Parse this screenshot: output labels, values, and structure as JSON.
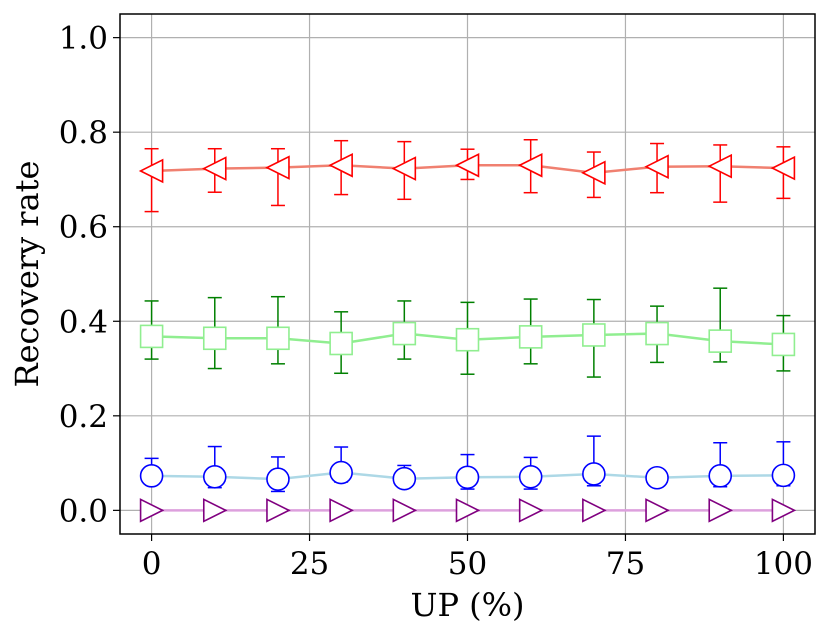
{
  "chart_data": {
    "type": "line",
    "xlabel": "UP (%)",
    "ylabel": "Recovery rate",
    "xlim": [
      -5,
      105
    ],
    "ylim": [
      -0.05,
      1.05
    ],
    "xticks": [
      0,
      25,
      50,
      75,
      100
    ],
    "xtick_labels": [
      "0",
      "25",
      "50",
      "75",
      "100"
    ],
    "yticks": [
      0.0,
      0.2,
      0.4,
      0.6,
      0.8,
      1.0
    ],
    "ytick_labels": [
      "0.0",
      "0.2",
      "0.4",
      "0.6",
      "0.8",
      "1.0"
    ],
    "grid": true,
    "x": [
      0,
      10,
      20,
      30,
      40,
      50,
      60,
      70,
      80,
      90,
      100
    ],
    "series": [
      {
        "marker": "triangle-left",
        "line_color": "#f08070",
        "marker_color": "#ff0000",
        "values": [
          0.718,
          0.723,
          0.725,
          0.73,
          0.723,
          0.73,
          0.73,
          0.714,
          0.727,
          0.728,
          0.724
        ],
        "err_low": [
          0.632,
          0.673,
          0.645,
          0.668,
          0.658,
          0.7,
          0.672,
          0.662,
          0.672,
          0.652,
          0.66
        ],
        "err_high": [
          0.765,
          0.765,
          0.765,
          0.782,
          0.78,
          0.764,
          0.784,
          0.758,
          0.776,
          0.773,
          0.769
        ]
      },
      {
        "marker": "square",
        "line_color": "#90ee90",
        "marker_color": "#90ee90",
        "err_color": "#008000",
        "values": [
          0.368,
          0.364,
          0.364,
          0.353,
          0.374,
          0.361,
          0.367,
          0.371,
          0.374,
          0.358,
          0.351
        ],
        "err_low": [
          0.32,
          0.3,
          0.31,
          0.29,
          0.32,
          0.288,
          0.31,
          0.282,
          0.313,
          0.314,
          0.295
        ],
        "err_high": [
          0.443,
          0.45,
          0.452,
          0.42,
          0.443,
          0.44,
          0.447,
          0.446,
          0.432,
          0.47,
          0.412
        ]
      },
      {
        "marker": "circle",
        "line_color": "#add8e6",
        "marker_color": "#0000ff",
        "values": [
          0.073,
          0.071,
          0.066,
          0.08,
          0.067,
          0.07,
          0.071,
          0.077,
          0.069,
          0.073,
          0.074
        ],
        "err_low": [
          0.058,
          0.048,
          0.04,
          0.06,
          0.055,
          0.045,
          0.045,
          0.052,
          0.055,
          0.05,
          0.052
        ],
        "err_high": [
          0.11,
          0.135,
          0.113,
          0.134,
          0.095,
          0.118,
          0.112,
          0.157,
          0.087,
          0.143,
          0.145
        ]
      },
      {
        "marker": "triangle-right",
        "line_color": "#dda0dd",
        "marker_color": "#800080",
        "values": [
          0.0,
          0.0,
          0.0,
          0.0,
          0.0,
          0.0,
          0.0,
          0.0,
          0.0,
          0.0,
          0.0
        ],
        "err_low": [
          0.0,
          0.0,
          0.0,
          0.0,
          0.0,
          0.0,
          0.0,
          0.0,
          0.0,
          0.0,
          0.0
        ],
        "err_high": [
          0.0,
          0.0,
          0.0,
          0.0,
          0.0,
          0.0,
          0.0,
          0.0,
          0.0,
          0.0,
          0.0
        ]
      }
    ]
  }
}
